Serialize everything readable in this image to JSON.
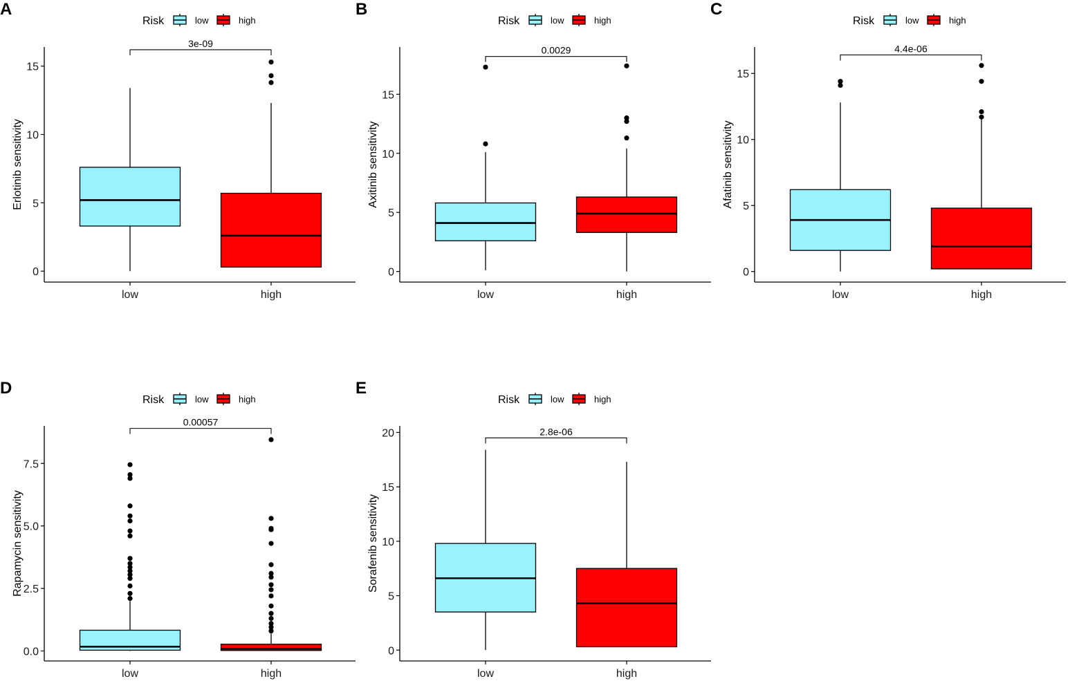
{
  "legend": {
    "title": "Risk",
    "items": [
      {
        "label": "low",
        "color": "#99F3FE"
      },
      {
        "label": "high",
        "color": "#FF0000"
      }
    ]
  },
  "chart_data": [
    {
      "panel": "A",
      "type": "boxplot",
      "ylabel": "Erlotinib sensitivity",
      "categories": [
        "low",
        "high"
      ],
      "ylim": [
        -0.8,
        16.4
      ],
      "yticks": [
        0,
        5,
        10,
        15
      ],
      "ytick_labels": [
        "0",
        "5",
        "10",
        "15"
      ],
      "boxes": [
        {
          "group": "low",
          "whisker_low": 0,
          "q1": 3.3,
          "median": 5.2,
          "q3": 7.6,
          "whisker_high": 13.4,
          "outliers": []
        },
        {
          "group": "high",
          "whisker_low": 0.3,
          "q1": 0.3,
          "median": 2.6,
          "q3": 5.7,
          "whisker_high": 12.3,
          "outliers": [
            13.8,
            14.3,
            15.3
          ]
        }
      ],
      "pvalue": "3e-09",
      "bracket_y": 16.2
    },
    {
      "panel": "B",
      "type": "boxplot",
      "ylabel": "Axitinib sensitivity",
      "categories": [
        "low",
        "high"
      ],
      "ylim": [
        -0.9,
        19.0
      ],
      "yticks": [
        0,
        5,
        10,
        15
      ],
      "ytick_labels": [
        "0",
        "5",
        "10",
        "15"
      ],
      "boxes": [
        {
          "group": "low",
          "whisker_low": 0.1,
          "q1": 2.6,
          "median": 4.1,
          "q3": 5.8,
          "whisker_high": 10.1,
          "outliers": [
            10.8,
            17.3
          ]
        },
        {
          "group": "high",
          "whisker_low": 0,
          "q1": 3.3,
          "median": 4.9,
          "q3": 6.3,
          "whisker_high": 10.4,
          "outliers": [
            11.3,
            12.7,
            13.0,
            17.4
          ]
        }
      ],
      "pvalue": "0.0029",
      "bracket_y": 18.2
    },
    {
      "panel": "C",
      "type": "boxplot",
      "ylabel": "Afatinib sensitivity",
      "categories": [
        "low",
        "high"
      ],
      "ylim": [
        -0.8,
        17.0
      ],
      "yticks": [
        0,
        5,
        10,
        15
      ],
      "ytick_labels": [
        "0",
        "5",
        "10",
        "15"
      ],
      "boxes": [
        {
          "group": "low",
          "whisker_low": 0,
          "q1": 1.6,
          "median": 3.9,
          "q3": 6.2,
          "whisker_high": 12.8,
          "outliers": [
            14.1,
            14.4
          ]
        },
        {
          "group": "high",
          "whisker_low": 0.2,
          "q1": 0.2,
          "median": 1.9,
          "q3": 4.8,
          "whisker_high": 11.6,
          "outliers": [
            11.7,
            12.1,
            14.4,
            15.6
          ]
        }
      ],
      "pvalue": "4.4e-06",
      "bracket_y": 16.4
    },
    {
      "panel": "D",
      "type": "boxplot",
      "ylabel": "Rapamycin sensitivity",
      "categories": [
        "low",
        "high"
      ],
      "ylim": [
        -0.4,
        9.0
      ],
      "yticks": [
        0,
        2.5,
        5,
        7.5
      ],
      "ytick_labels": [
        "0.0",
        "2.5",
        "5.0",
        "7.5"
      ],
      "boxes": [
        {
          "group": "low",
          "whisker_low": 0,
          "q1": 0.03,
          "median": 0.17,
          "q3": 0.83,
          "whisker_high": 2.0,
          "outliers": [
            2.1,
            2.3,
            2.6,
            2.9,
            3.05,
            3.2,
            3.35,
            3.5,
            3.7,
            4.6,
            4.8,
            5.2,
            5.4,
            5.8,
            6.9,
            7.05,
            7.45
          ]
        },
        {
          "group": "high",
          "whisker_low": 0,
          "q1": 0.02,
          "median": 0.09,
          "q3": 0.27,
          "whisker_high": 0.7,
          "outliers": [
            0.8,
            0.95,
            1.1,
            1.3,
            1.5,
            1.8,
            2.2,
            2.45,
            2.65,
            2.95,
            3.1,
            3.45,
            4.3,
            4.85,
            4.9,
            5.3,
            8.45
          ]
        }
      ],
      "pvalue": "0.00057",
      "bracket_y": 8.9
    },
    {
      "panel": "E",
      "type": "boxplot",
      "ylabel": "Sorafenib sensitivity",
      "categories": [
        "low",
        "high"
      ],
      "ylim": [
        -1.0,
        20.6
      ],
      "yticks": [
        0,
        5,
        10,
        15,
        20
      ],
      "ytick_labels": [
        "0",
        "5",
        "10",
        "15",
        "20"
      ],
      "boxes": [
        {
          "group": "low",
          "whisker_low": 0,
          "q1": 3.5,
          "median": 6.6,
          "q3": 9.8,
          "whisker_high": 18.4,
          "outliers": []
        },
        {
          "group": "high",
          "whisker_low": 0.3,
          "q1": 0.3,
          "median": 4.3,
          "q3": 7.5,
          "whisker_high": 17.3,
          "outliers": []
        }
      ],
      "pvalue": "2.8e-06",
      "bracket_y": 19.5
    }
  ]
}
